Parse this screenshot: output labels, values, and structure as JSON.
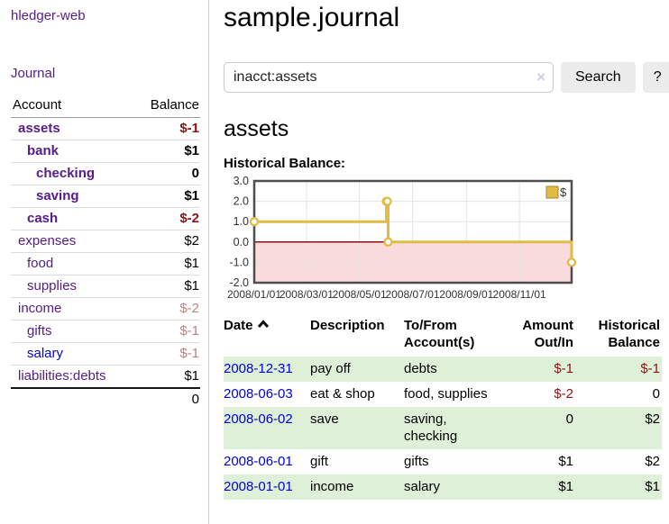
{
  "colors": {
    "link_purple": "#551a8b",
    "link_blue": "#0000e0",
    "negative_strong": "#8e1414",
    "negative_soft": "#c08181",
    "row_green": "#dff0d8",
    "chart_line": "#e2ba45",
    "chart_negative_fill": "#fbdcdd",
    "chart_zero_line": "#8b1111",
    "chart_border": "#4d4d4d",
    "chart_grid": "#e3e3e3"
  },
  "sidebar": {
    "app_title": "hledger-web",
    "journal_link": "Journal",
    "accounts": {
      "header_account": "Account",
      "header_balance": "Balance",
      "rows": [
        {
          "name": "assets",
          "balance": "$-1"
        },
        {
          "name": "bank",
          "balance": "$1"
        },
        {
          "name": "checking",
          "balance": "0"
        },
        {
          "name": "saving",
          "balance": "$1"
        },
        {
          "name": "cash",
          "balance": "$-2"
        },
        {
          "name": "expenses",
          "balance": "$2"
        },
        {
          "name": "food",
          "balance": "$1"
        },
        {
          "name": "supplies",
          "balance": "$1"
        },
        {
          "name": "income",
          "balance": "$-2"
        },
        {
          "name": "gifts",
          "balance": "$-1"
        },
        {
          "name": "salary",
          "balance": "$-1"
        },
        {
          "name": "liabilities:debts",
          "balance": "$1"
        }
      ],
      "total": "0"
    }
  },
  "main": {
    "page_title": "sample.journal",
    "search": {
      "value": "inacct:assets",
      "clear_icon": "×",
      "button_label": "Search",
      "help_label": "?"
    },
    "account_heading": "assets",
    "chart_heading": "Historical Balance:"
  },
  "chart_data": {
    "type": "line",
    "step": true,
    "title": "Historical Balance",
    "xlabel": "",
    "ylabel": "",
    "x_range": [
      "2008-01-01",
      "2008-12-31"
    ],
    "ylim": [
      -2,
      3
    ],
    "y_ticks": [
      3,
      2,
      1,
      0,
      -1,
      -2
    ],
    "x_ticks": [
      "2008/01/01",
      "2008/03/01",
      "2008/05/01",
      "2008/07/01",
      "2008/09/01",
      "2008/11/01"
    ],
    "grid": true,
    "legend_position": "top-right",
    "series": [
      {
        "name": "$",
        "color": "#e2ba45",
        "points": [
          [
            "2008-01-01",
            1
          ],
          [
            "2008-06-01",
            2
          ],
          [
            "2008-06-02",
            2
          ],
          [
            "2008-06-03",
            0
          ],
          [
            "2008-12-31",
            -1
          ]
        ]
      }
    ]
  },
  "register": {
    "headers": {
      "date": "Date",
      "description": "Description",
      "accounts": "To/From Account(s)",
      "amount": "Amount Out/In",
      "balance": "Historical Balance"
    },
    "rows": [
      {
        "date": "2008-12-31",
        "description": "pay off",
        "accounts": "debts",
        "amount": "$-1",
        "balance": "$-1"
      },
      {
        "date": "2008-06-03",
        "description": "eat & shop",
        "accounts": "food, supplies",
        "amount": "$-2",
        "balance": "0"
      },
      {
        "date": "2008-06-02",
        "description": "save",
        "accounts": "saving, checking",
        "amount": "0",
        "balance": "$2"
      },
      {
        "date": "2008-06-01",
        "description": "gift",
        "accounts": "gifts",
        "amount": "$1",
        "balance": "$2"
      },
      {
        "date": "2008-01-01",
        "description": "income",
        "accounts": "salary",
        "amount": "$1",
        "balance": "$1"
      }
    ]
  }
}
